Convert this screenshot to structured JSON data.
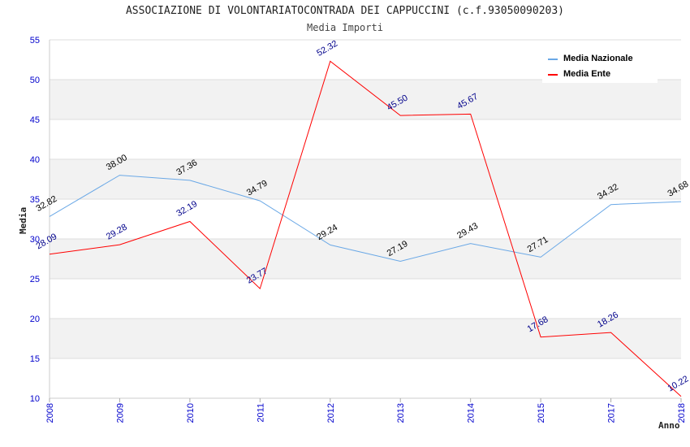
{
  "chart_data": {
    "type": "line",
    "title": "ASSOCIAZIONE DI VOLONTARIATOCONTRADA DEI CAPPUCCINI (c.f.93050090203)",
    "subtitle": "Media Importi",
    "xlabel": "Anno",
    "ylabel": "Media",
    "ylim": [
      10,
      55
    ],
    "yticks": [
      10,
      15,
      20,
      25,
      30,
      35,
      40,
      45,
      50,
      55
    ],
    "categories": [
      "2008",
      "2009",
      "2010",
      "2011",
      "2012",
      "2013",
      "2014",
      "2015",
      "2017",
      "2018"
    ],
    "series": [
      {
        "name": "Media Nazionale",
        "color": "#6aa8e6",
        "label_color": "#000000",
        "values": [
          32.82,
          38.0,
          37.36,
          34.79,
          29.24,
          27.19,
          29.43,
          27.71,
          34.32,
          34.68
        ],
        "labels": [
          "32.82",
          "38.00",
          "37.36",
          "34.79",
          "29.24",
          "27.19",
          "29.43",
          "27.71",
          "34.32",
          "34.68"
        ]
      },
      {
        "name": "Media Ente",
        "color": "#ff0000",
        "label_color": "#00008b",
        "values": [
          28.09,
          29.28,
          32.19,
          23.77,
          52.32,
          45.5,
          45.67,
          17.68,
          18.26,
          10.22
        ],
        "labels": [
          "28.09",
          "29.28",
          "32.19",
          "23.77",
          "52.32",
          "45.50",
          "45.67",
          "17.68",
          "18.26",
          "10.22"
        ]
      }
    ],
    "grid": true,
    "legend_position": "top-right",
    "band_color": "#f2f2f2",
    "axis_color": "#0000cc"
  }
}
